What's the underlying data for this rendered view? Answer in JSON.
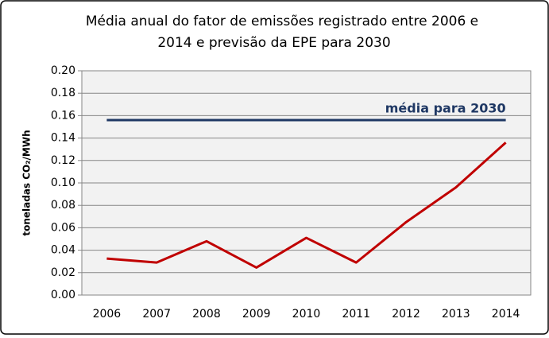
{
  "chart_data": {
    "type": "line",
    "title": [
      "Média anual do fator de emissões registrado entre  2006 e",
      "2014 e previsão da EPE para 2030"
    ],
    "y_label": "toneladas CO₂/MWh",
    "categories": [
      "2006",
      "2007",
      "2008",
      "2009",
      "2010",
      "2011",
      "2012",
      "2013",
      "2014"
    ],
    "series": [
      {
        "color": "#c00000",
        "values": [
          0.0325,
          0.029,
          0.048,
          0.0245,
          0.051,
          0.029,
          0.065,
          0.096,
          0.136
        ]
      }
    ],
    "reference": {
      "name": "média para 2030",
      "value": 0.156,
      "color": "#1f3864"
    },
    "ylim": [
      0,
      0.2
    ],
    "yticks": [
      {
        "value": 0,
        "label": "0.00"
      },
      {
        "value": 0.02,
        "label": "0.02"
      },
      {
        "value": 0.04,
        "label": "0.04"
      },
      {
        "value": 0.06,
        "label": "0.06"
      },
      {
        "value": 0.08,
        "label": "0.08"
      },
      {
        "value": 0.1,
        "label": "0.10"
      },
      {
        "value": 0.12,
        "label": "0.12"
      },
      {
        "value": 0.14,
        "label": "0.14"
      },
      {
        "value": 0.16,
        "label": "0.16"
      },
      {
        "value": 0.18,
        "label": "0.18"
      },
      {
        "value": 0.2,
        "label": "0.20"
      }
    ],
    "grid": true
  }
}
